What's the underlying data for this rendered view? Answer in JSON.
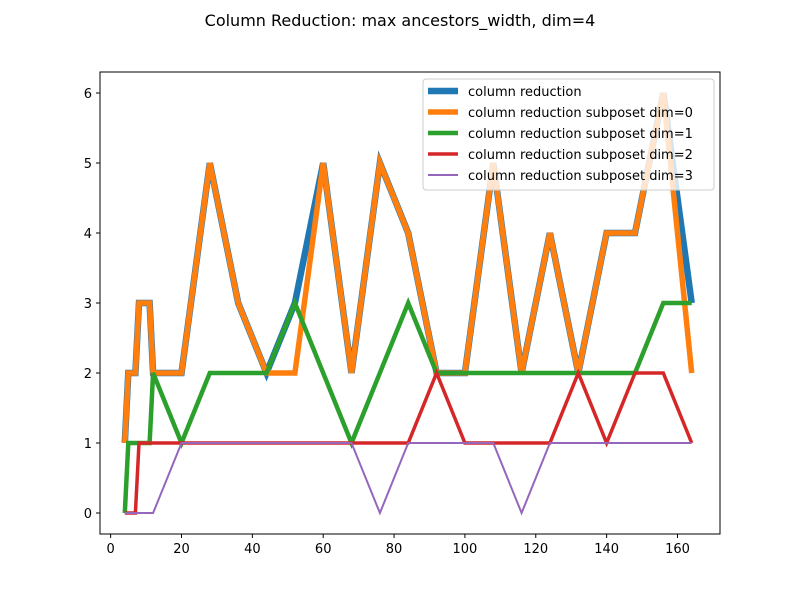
{
  "chart_data": {
    "type": "line",
    "title": "Column Reduction: max ancestors_width, dim=4",
    "xlabel": "",
    "ylabel": "",
    "xlim": [
      -3,
      172
    ],
    "ylim": [
      -0.3,
      6.3
    ],
    "xticks": [
      0,
      20,
      40,
      60,
      80,
      100,
      120,
      140,
      160
    ],
    "yticks": [
      0,
      1,
      2,
      3,
      4,
      5,
      6
    ],
    "grid": false,
    "legend_position": "upper right",
    "series": [
      {
        "name": "column reduction",
        "color": "#1f77b4",
        "x": [
          4,
          5,
          7,
          8,
          9,
          11,
          12,
          13,
          20,
          28,
          36,
          44,
          52,
          60,
          68,
          76,
          84,
          92,
          100,
          108,
          116,
          124,
          132,
          140,
          148,
          156,
          164
        ],
        "y": [
          1,
          2,
          2,
          3,
          3,
          3,
          2,
          2,
          2,
          5,
          3,
          2,
          3,
          5,
          2,
          5,
          4,
          2,
          2,
          5,
          2,
          4,
          2,
          4,
          4,
          6,
          3
        ]
      },
      {
        "name": "column reduction subposet dim=0",
        "color": "#ff7f0e",
        "x": [
          4,
          5,
          7,
          8,
          9,
          11,
          12,
          13,
          20,
          28,
          36,
          44,
          52,
          60,
          68,
          76,
          84,
          92,
          100,
          108,
          116,
          124,
          132,
          140,
          148,
          156,
          164
        ],
        "y": [
          1,
          2,
          2,
          3,
          3,
          3,
          2,
          2,
          2,
          5,
          3,
          2,
          2,
          5,
          2,
          5,
          4,
          2,
          2,
          5,
          2,
          4,
          2,
          4,
          4,
          6,
          2
        ]
      },
      {
        "name": "column reduction subposet dim=1",
        "color": "#2ca02c",
        "x": [
          4,
          5,
          11,
          12,
          20,
          28,
          44,
          52,
          68,
          84,
          92,
          148,
          156,
          164
        ],
        "y": [
          0,
          1,
          1,
          2,
          1,
          2,
          2,
          3,
          1,
          3,
          2,
          2,
          3,
          3
        ]
      },
      {
        "name": "column reduction subposet dim=2",
        "color": "#d62728",
        "x": [
          4,
          7,
          8,
          84,
          92,
          100,
          124,
          132,
          140,
          148,
          156,
          164
        ],
        "y": [
          0,
          0,
          1,
          1,
          2,
          1,
          1,
          2,
          1,
          2,
          2,
          1
        ]
      },
      {
        "name": "column reduction subposet dim=3",
        "color": "#9467bd",
        "x": [
          4,
          12,
          20,
          68,
          76,
          84,
          108,
          116,
          124,
          164
        ],
        "y": [
          0,
          0,
          1,
          1,
          0,
          1,
          1,
          0,
          1,
          1
        ]
      }
    ]
  }
}
